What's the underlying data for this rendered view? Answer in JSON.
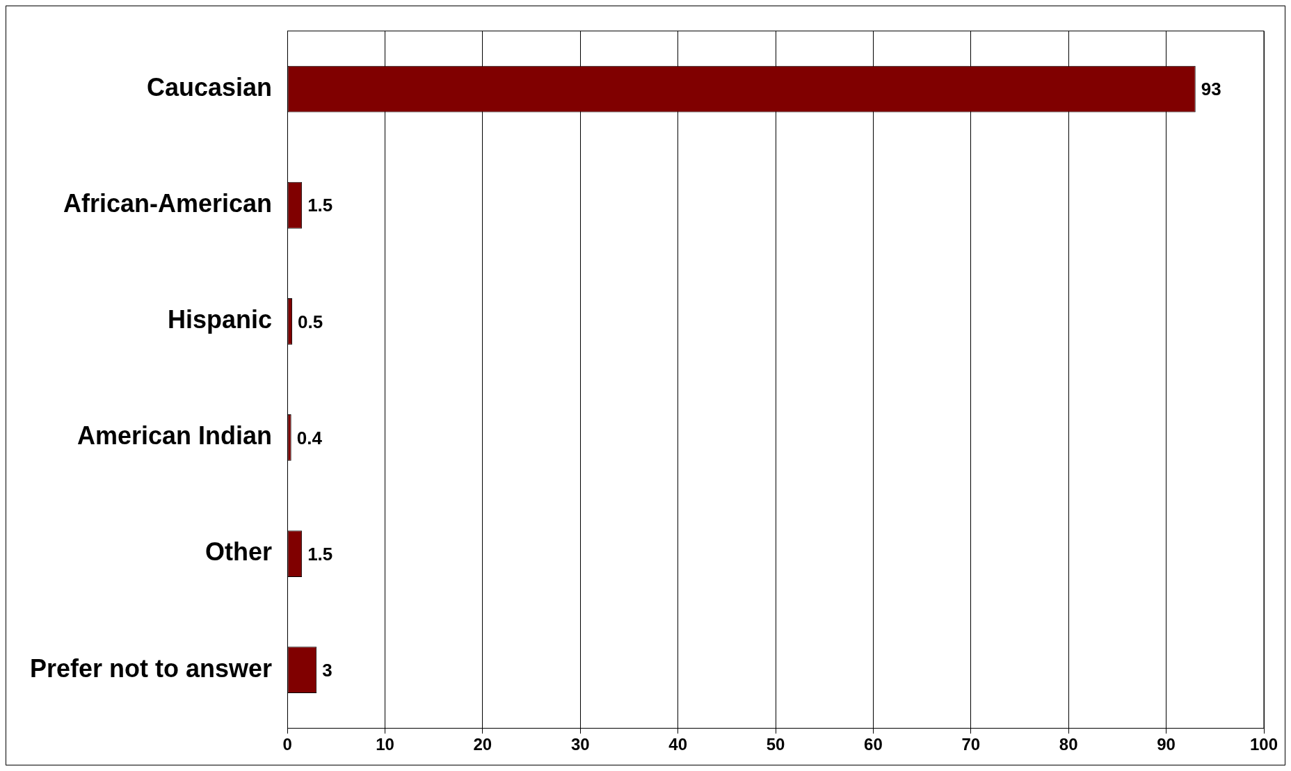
{
  "chart_data": {
    "type": "bar",
    "orientation": "horizontal",
    "categories": [
      "Caucasian",
      "African-American",
      "Hispanic",
      "American Indian",
      "Other",
      "Prefer not to answer"
    ],
    "values": [
      93,
      1.5,
      0.5,
      0.4,
      1.5,
      3
    ],
    "color": "#800000",
    "xlim": [
      0,
      100
    ],
    "xticks": [
      0,
      10,
      20,
      30,
      40,
      50,
      60,
      70,
      80,
      90,
      100
    ],
    "grid": "x",
    "data_labels": true,
    "legend": false
  }
}
